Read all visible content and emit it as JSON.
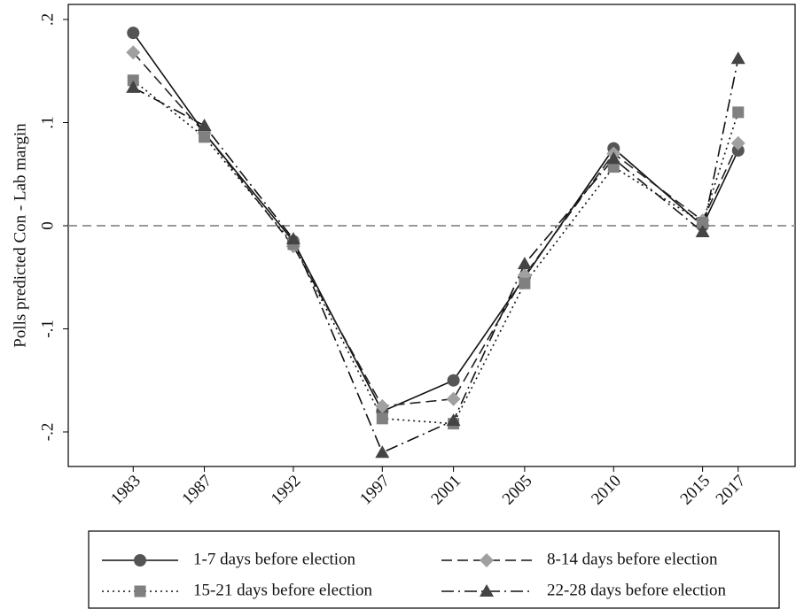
{
  "chart_data": {
    "type": "line",
    "y_label": "Polls predicted Con - Lab margin",
    "x": [
      1983,
      1987,
      1992,
      1997,
      2001,
      2005,
      2010,
      2015,
      2017
    ],
    "xlim": [
      1979.35,
      2020.2
    ],
    "xticks": [
      1983,
      1987,
      1992,
      1997,
      2001,
      2005,
      2010,
      2015,
      2017
    ],
    "ylim": [
      -0.2335,
      0.2146
    ],
    "yticks": [
      {
        "value": 0.2,
        "label": ".2"
      },
      {
        "value": 0.1,
        "label": ".1"
      },
      0,
      {
        "value": -0.1,
        "label": "-.1"
      },
      {
        "value": -0.2,
        "label": "-.2"
      }
    ],
    "hline": 0,
    "series": [
      {
        "name": "1-7 days before election",
        "color": "#555555",
        "marker": "circle",
        "linestyle": "solid",
        "values": [
          0.187,
          0.09,
          -0.015,
          -0.18,
          -0.15,
          -0.05,
          0.075,
          0.0,
          0.073
        ]
      },
      {
        "name": "8-14 days before election",
        "color": "#a0a0a0",
        "marker": "diamond",
        "linestyle": "dashed",
        "values": [
          0.168,
          0.09,
          -0.02,
          -0.175,
          -0.168,
          -0.048,
          0.07,
          0.005,
          0.08
        ]
      },
      {
        "name": "15-21 days before election",
        "color": "#808080",
        "marker": "square",
        "linestyle": "dotted",
        "values": [
          0.141,
          0.086,
          -0.018,
          -0.187,
          -0.192,
          -0.056,
          0.057,
          0.003,
          0.11
        ]
      },
      {
        "name": "22-28 days before election",
        "color": "#444444",
        "marker": "triangle",
        "linestyle": "dashdot",
        "values": [
          0.134,
          0.097,
          -0.013,
          -0.22,
          -0.189,
          -0.037,
          0.065,
          -0.006,
          0.162
        ]
      }
    ]
  }
}
